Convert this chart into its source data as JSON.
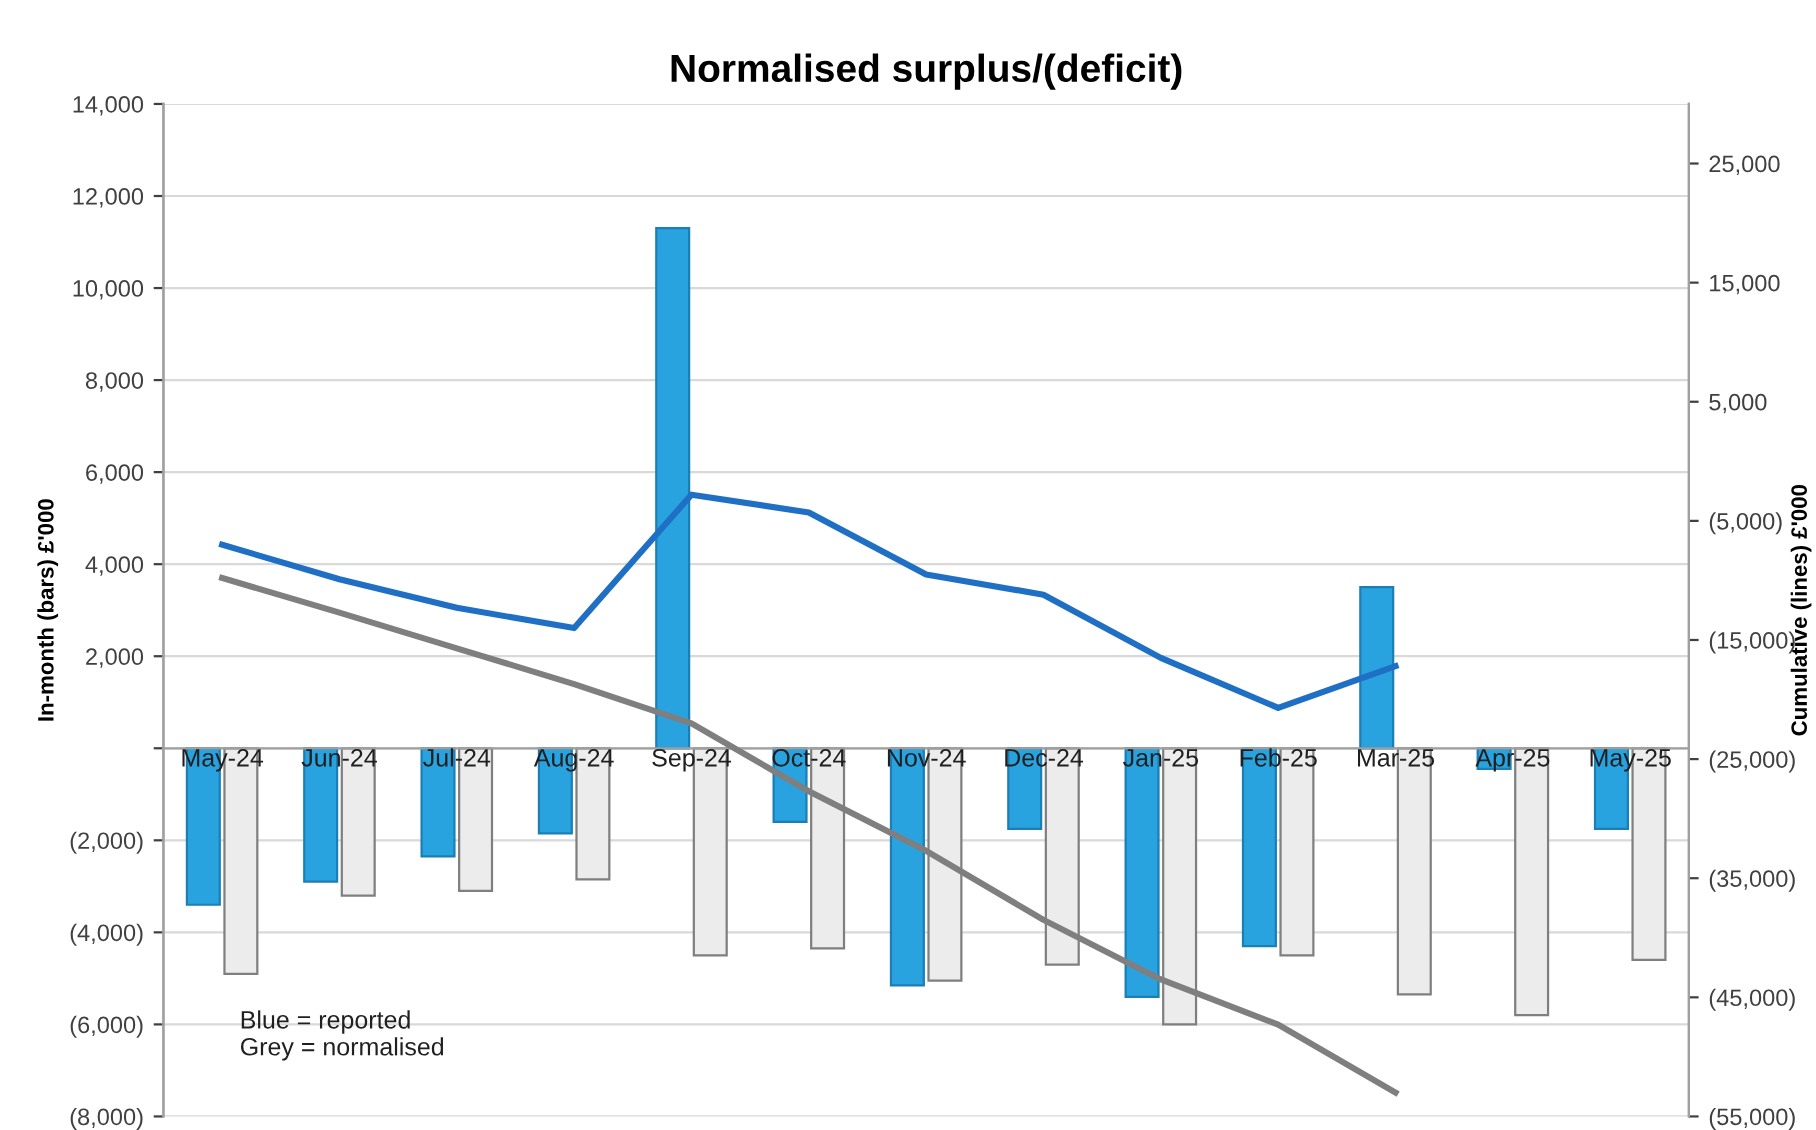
{
  "chart_data": {
    "type": "bar",
    "title": "Normalised surplus/(deficit)",
    "ylabel": "In-month (bars) £'000",
    "y2label": "Cumulative (lines) £'000",
    "categories": [
      "May-24",
      "Jun-24",
      "Jul-24",
      "Aug-24",
      "Sep-24",
      "Oct-24",
      "Nov-24",
      "Dec-24",
      "Jan-25",
      "Feb-25",
      "Mar-25",
      "Apr-25",
      "May-25"
    ],
    "series": [
      {
        "color": "#29a3e0",
        "values": [
          -3400,
          -2900,
          -2350,
          -1850,
          11300,
          -1600,
          -5150,
          -1750,
          -5400,
          -4300,
          3500,
          -450,
          -1750
        ]
      },
      {
        "color": "#ececec",
        "values": [
          -4900,
          -3200,
          -3100,
          -2850,
          -4500,
          -4350,
          -5050,
          -4700,
          -6000,
          -4500,
          -5350,
          -5800,
          -4600
        ]
      },
      {
        "type": "line",
        "axis": "y2",
        "color": "#1f6fc4",
        "values": [
          -7000,
          -9900,
          -12300,
          -14000,
          -2800,
          -4300,
          -9500,
          -11200,
          -16500,
          -20700,
          -17200,
          null,
          null
        ]
      },
      {
        "type": "line",
        "axis": "y2",
        "color": "#7f7f7f",
        "values": [
          -9800,
          -12700,
          -15700,
          -18700,
          -22000,
          -27700,
          -32700,
          -38500,
          -43500,
          -47300,
          -53000,
          null,
          null
        ]
      }
    ],
    "ylim": [
      -8000,
      14000
    ],
    "yticks": [
      {
        "value": -8000,
        "label": "(8,000)"
      },
      {
        "value": -6000,
        "label": "(6,000)"
      },
      {
        "value": -4000,
        "label": "(4,000)"
      },
      {
        "value": -2000,
        "label": "(2,000)"
      },
      {
        "value": 0,
        "label": null
      },
      {
        "value": 2000,
        "label": "2,000"
      },
      {
        "value": 4000,
        "label": "4,000"
      },
      {
        "value": 6000,
        "label": "6,000"
      },
      {
        "value": 8000,
        "label": "8,000"
      },
      {
        "value": 10000,
        "label": "10,000"
      },
      {
        "value": 12000,
        "label": "12,000"
      },
      {
        "value": 14000,
        "label": "14,000"
      }
    ],
    "y2lim": [
      -55000,
      30000
    ],
    "y2ticks": [
      {
        "value": -55000,
        "label": "(55,000)"
      },
      {
        "value": -45000,
        "label": "(45,000)"
      },
      {
        "value": -35000,
        "label": "(35,000)"
      },
      {
        "value": -25000,
        "label": "(25,000)"
      },
      {
        "value": -15000,
        "label": "(15,000)"
      },
      {
        "value": -5000,
        "label": "(5,000)"
      },
      {
        "value": 5000,
        "label": "5,000"
      },
      {
        "value": 15000,
        "label": "15,000"
      },
      {
        "value": 25000,
        "label": "25,000"
      }
    ],
    "grid": "y",
    "legend": false,
    "marker": "none",
    "line_style": "solid",
    "annotations": [
      "Blue = reported\nGrey = normalised"
    ]
  }
}
